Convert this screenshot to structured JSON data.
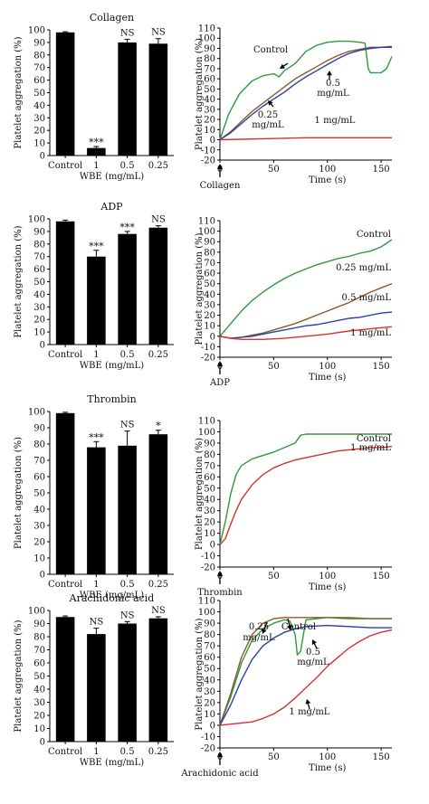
{
  "chart_data": [
    {
      "type": "bar",
      "title": "Collagen",
      "xlabel": "WBE (mg/mL)",
      "ylabel": "Platelet aggregation (%)",
      "ylim": [
        0,
        100
      ],
      "yticks": [
        0,
        10,
        20,
        30,
        40,
        50,
        60,
        70,
        80,
        90,
        100
      ],
      "categories": [
        "Control",
        "1",
        "0.5",
        "0.25"
      ],
      "values": [
        98,
        6,
        90,
        89
      ],
      "errors": [
        0.5,
        1.2,
        2.5,
        4
      ],
      "annotations": [
        "",
        "***",
        "NS",
        "NS"
      ],
      "bar_color": "#000000"
    },
    {
      "type": "line",
      "xlabel": "Time (s)",
      "ylabel": "Platelet aggregation (%)",
      "xlim": [
        0,
        160
      ],
      "ylim": [
        -20,
        110
      ],
      "xticks": [
        0,
        50,
        100,
        150
      ],
      "yticks": [
        -20,
        -10,
        0,
        10,
        20,
        30,
        40,
        50,
        60,
        70,
        80,
        90,
        100,
        110
      ],
      "agonist": "Collagen",
      "series": [
        {
          "name": "Control",
          "color": "#2e9a3a",
          "x": [
            0,
            8,
            18,
            30,
            40,
            50,
            55,
            60,
            70,
            80,
            90,
            100,
            110,
            120,
            130,
            135,
            138,
            140,
            150,
            155,
            160
          ],
          "y": [
            0,
            25,
            45,
            58,
            63,
            65,
            62,
            68,
            75,
            87,
            93,
            96,
            97,
            97,
            96,
            95,
            70,
            66,
            66,
            70,
            82
          ]
        },
        {
          "name": "0.25 mg/mL",
          "color": "#8b5a2b",
          "x": [
            0,
            10,
            20,
            30,
            40,
            50,
            60,
            70,
            80,
            90,
            100,
            110,
            120,
            130,
            140,
            150,
            160
          ],
          "y": [
            0,
            8,
            18,
            28,
            36,
            44,
            52,
            60,
            66,
            72,
            78,
            83,
            87,
            89,
            91,
            91,
            92
          ]
        },
        {
          "name": "0.5 mg/mL",
          "color": "#2a3fa8",
          "x": [
            0,
            10,
            20,
            30,
            40,
            50,
            60,
            70,
            80,
            90,
            100,
            110,
            120,
            130,
            140,
            150,
            160
          ],
          "y": [
            0,
            7,
            16,
            25,
            33,
            40,
            47,
            55,
            62,
            68,
            74,
            80,
            85,
            88,
            90,
            91,
            91
          ]
        },
        {
          "name": "1 mg/mL",
          "color": "#d93030",
          "x": [
            0,
            40,
            80,
            120,
            160
          ],
          "y": [
            0,
            1,
            2,
            2,
            2
          ]
        }
      ],
      "labels": [
        "Control",
        "0.25",
        "mg/mL",
        "0.5",
        "mg/mL",
        "1 mg/mL"
      ]
    },
    {
      "type": "bar",
      "title": "ADP",
      "xlabel": "WBE (mg/mL)",
      "ylabel": "Platelet aggregation (%)",
      "ylim": [
        0,
        100
      ],
      "yticks": [
        0,
        10,
        20,
        30,
        40,
        50,
        60,
        70,
        80,
        90,
        100
      ],
      "categories": [
        "Control",
        "1",
        "0.5",
        "0.25"
      ],
      "values": [
        98,
        70,
        88,
        93
      ],
      "errors": [
        1,
        5,
        2,
        1.5
      ],
      "annotations": [
        "",
        "***",
        "***",
        "NS"
      ],
      "bar_color": "#000000"
    },
    {
      "type": "line",
      "xlabel": "Time (s)",
      "ylabel": "Platelet aggregation (%)",
      "xlim": [
        0,
        160
      ],
      "ylim": [
        -20,
        110
      ],
      "xticks": [
        0,
        50,
        100,
        150
      ],
      "yticks": [
        -20,
        -10,
        0,
        10,
        20,
        30,
        40,
        50,
        60,
        70,
        80,
        90,
        100,
        110
      ],
      "agonist": "ADP",
      "series": [
        {
          "name": "Control",
          "color": "#2e9a3a",
          "x": [
            0,
            10,
            20,
            30,
            40,
            50,
            60,
            70,
            80,
            90,
            100,
            110,
            120,
            130,
            140,
            150,
            160
          ],
          "y": [
            0,
            12,
            24,
            34,
            42,
            49,
            55,
            60,
            64,
            68,
            71,
            74,
            76,
            79,
            81,
            85,
            92
          ]
        },
        {
          "name": "0.25 mg/mL",
          "color": "#8b5a2b",
          "x": [
            0,
            10,
            20,
            30,
            40,
            50,
            60,
            70,
            80,
            90,
            100,
            110,
            120,
            130,
            140,
            150,
            160
          ],
          "y": [
            0,
            -2,
            -1,
            1,
            3,
            6,
            9,
            12,
            16,
            20,
            24,
            28,
            32,
            37,
            42,
            46,
            50
          ]
        },
        {
          "name": "0.5 mg/mL",
          "color": "#2a3fa8",
          "x": [
            0,
            10,
            20,
            30,
            40,
            50,
            60,
            70,
            80,
            90,
            100,
            110,
            120,
            130,
            140,
            150,
            160
          ],
          "y": [
            0,
            -2,
            -1,
            0,
            2,
            4,
            6,
            8,
            10,
            11,
            13,
            15,
            17,
            18,
            20,
            22,
            23
          ]
        },
        {
          "name": "1 mg/mL",
          "color": "#d93030",
          "x": [
            0,
            10,
            20,
            40,
            60,
            80,
            100,
            120,
            140,
            160
          ],
          "y": [
            0,
            -2,
            -3,
            -3,
            -2,
            0,
            2,
            5,
            7,
            9
          ]
        }
      ],
      "labels": [
        "Control",
        "0.25 mg/mL",
        "0.5 mg/mL",
        "1 mg/mL"
      ]
    },
    {
      "type": "bar",
      "title": "Thrombin",
      "xlabel": "WBE (mg/mL)",
      "ylabel": "Platelet aggregation (%)",
      "ylim": [
        0,
        100
      ],
      "yticks": [
        0,
        10,
        20,
        30,
        40,
        50,
        60,
        70,
        80,
        90,
        100
      ],
      "categories": [
        "Control",
        "1",
        "0.5",
        "0.25"
      ],
      "values": [
        99,
        78,
        79,
        86
      ],
      "errors": [
        0.5,
        3.5,
        9,
        2.5
      ],
      "annotations": [
        "",
        "***",
        "NS",
        "*"
      ],
      "bar_color": "#000000"
    },
    {
      "type": "line",
      "xlabel": "Time (s)",
      "ylabel": "Platelet aggregation (%)",
      "xlim": [
        0,
        160
      ],
      "ylim": [
        -20,
        110
      ],
      "xticks": [
        0,
        50,
        100,
        150
      ],
      "yticks": [
        -20,
        -10,
        0,
        10,
        20,
        30,
        40,
        50,
        60,
        70,
        80,
        90,
        100,
        110
      ],
      "agonist": "Thrombin",
      "series": [
        {
          "name": "Control",
          "color": "#2e9a3a",
          "x": [
            0,
            5,
            10,
            15,
            20,
            30,
            40,
            50,
            60,
            70,
            75,
            80,
            100,
            120,
            140,
            160
          ],
          "y": [
            0,
            20,
            45,
            62,
            70,
            76,
            79,
            82,
            86,
            90,
            97,
            98,
            98,
            98,
            98,
            98
          ]
        },
        {
          "name": "1 mg/mL",
          "color": "#d93030",
          "x": [
            0,
            5,
            10,
            15,
            20,
            30,
            40,
            50,
            60,
            70,
            80,
            90,
            100,
            110,
            120,
            130,
            140,
            150,
            160
          ],
          "y": [
            0,
            5,
            18,
            30,
            40,
            53,
            62,
            68,
            72,
            75,
            77,
            79,
            81,
            83,
            84,
            85,
            86,
            86,
            87
          ]
        }
      ],
      "labels": [
        "Control",
        "1 mg/mL"
      ]
    },
    {
      "type": "bar",
      "title": "Arachidonic acid",
      "xlabel": "WBE (mg/mL)",
      "ylabel": "Platelet aggregation (%)",
      "ylim": [
        0,
        100
      ],
      "yticks": [
        0,
        10,
        20,
        30,
        40,
        50,
        60,
        70,
        80,
        90,
        100
      ],
      "categories": [
        "Control",
        "1",
        "0.5",
        "0.25"
      ],
      "values": [
        95,
        82,
        90,
        94
      ],
      "errors": [
        0.8,
        4.5,
        1.5,
        1.2
      ],
      "annotations": [
        "",
        "NS",
        "NS",
        "NS"
      ],
      "bar_color": "#000000"
    },
    {
      "type": "line",
      "xlabel": "Time (s)",
      "ylabel": "Platelet aggregation (%)",
      "xlim": [
        0,
        160
      ],
      "ylim": [
        -20,
        110
      ],
      "xticks": [
        0,
        50,
        100,
        150
      ],
      "yticks": [
        -20,
        -10,
        0,
        10,
        20,
        30,
        40,
        50,
        60,
        70,
        80,
        90,
        100,
        110
      ],
      "agonist": "Arachidonic acid",
      "series": [
        {
          "name": "Control",
          "color": "#2e9a3a",
          "x": [
            0,
            10,
            20,
            30,
            40,
            50,
            60,
            65,
            70,
            72,
            75,
            80,
            100,
            120,
            140,
            160
          ],
          "y": [
            0,
            25,
            55,
            75,
            85,
            90,
            93,
            92,
            80,
            62,
            65,
            93,
            95,
            95,
            94,
            94
          ]
        },
        {
          "name": "0.25 mg/mL",
          "color": "#8b5a2b",
          "x": [
            0,
            10,
            20,
            30,
            40,
            50,
            60,
            70,
            80,
            100,
            120,
            140,
            160
          ],
          "y": [
            0,
            28,
            60,
            80,
            90,
            94,
            95,
            95,
            95,
            95,
            94,
            94,
            94
          ]
        },
        {
          "name": "0.5 mg/mL",
          "color": "#2a3fa8",
          "x": [
            0,
            10,
            20,
            30,
            40,
            50,
            60,
            70,
            80,
            100,
            120,
            140,
            160
          ],
          "y": [
            0,
            18,
            40,
            58,
            70,
            77,
            82,
            85,
            87,
            88,
            87,
            86,
            86
          ]
        },
        {
          "name": "1 mg/mL",
          "color": "#d93030",
          "x": [
            0,
            10,
            20,
            30,
            40,
            50,
            60,
            70,
            80,
            90,
            100,
            110,
            120,
            130,
            140,
            150,
            160
          ],
          "y": [
            0,
            1,
            2,
            3,
            6,
            10,
            16,
            24,
            33,
            42,
            52,
            60,
            68,
            74,
            79,
            82,
            84
          ]
        }
      ],
      "labels": [
        "0.25",
        "mg/mL",
        "Control",
        "0.5",
        "mg/mL",
        "1 mg/mL"
      ]
    }
  ]
}
